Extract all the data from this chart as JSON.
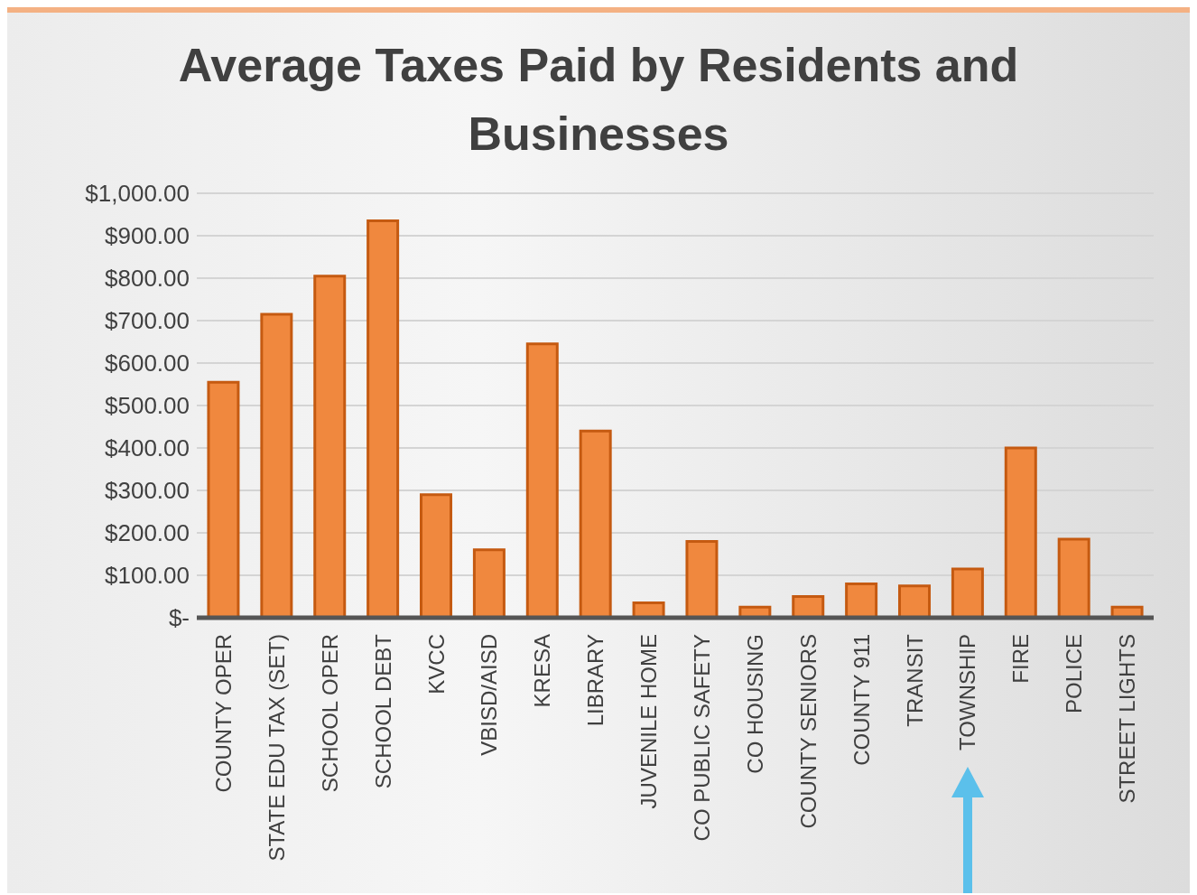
{
  "chart_data": {
    "type": "bar",
    "title": "Average Taxes Paid by Residents and Businesses",
    "categories": [
      "COUNTY OPER",
      "STATE EDU TAX (SET)",
      "SCHOOL OPER",
      "SCHOOL DEBT",
      "KVCC",
      "VBISD/AISD",
      "KRESA",
      "LIBRARY",
      "JUVENILE HOME",
      "CO PUBLIC SAFETY",
      "CO HOUSING",
      "COUNTY SENIORS",
      "COUNTY 911",
      "TRANSIT",
      "TOWNSHIP",
      "FIRE",
      "POLICE",
      "STREET LIGHTS"
    ],
    "values": [
      555,
      715,
      805,
      935,
      290,
      160,
      645,
      440,
      35,
      180,
      25,
      50,
      80,
      75,
      115,
      400,
      185,
      25
    ],
    "color": "#f0883e",
    "ylim": [
      0,
      1000
    ],
    "yticks": [
      {
        "value": 0,
        "label": "$-"
      },
      {
        "value": 100,
        "label": "$100.00"
      },
      {
        "value": 200,
        "label": "$200.00"
      },
      {
        "value": 300,
        "label": "$300.00"
      },
      {
        "value": 400,
        "label": "$400.00"
      },
      {
        "value": 500,
        "label": "$500.00"
      },
      {
        "value": 600,
        "label": "$600.00"
      },
      {
        "value": 700,
        "label": "$700.00"
      },
      {
        "value": 800,
        "label": "$800.00"
      },
      {
        "value": 900,
        "label": "$900.00"
      },
      {
        "value": 1000,
        "label": "$1,000.00"
      }
    ],
    "grid": "y"
  }
}
